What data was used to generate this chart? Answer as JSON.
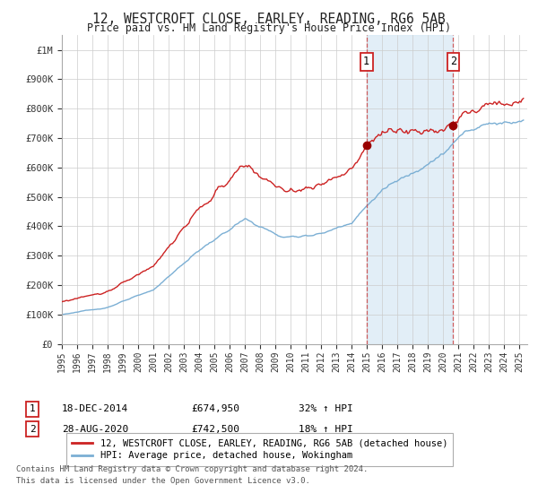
{
  "title": "12, WESTCROFT CLOSE, EARLEY, READING, RG6 5AB",
  "subtitle": "Price paid vs. HM Land Registry's House Price Index (HPI)",
  "legend_line1": "12, WESTCROFT CLOSE, EARLEY, READING, RG6 5AB (detached house)",
  "legend_line2": "HPI: Average price, detached house, Wokingham",
  "annotation1_date": "18-DEC-2014",
  "annotation1_price": "£674,950",
  "annotation1_hpi": "32% ↑ HPI",
  "annotation1_year": 2014.96,
  "annotation1_value": 674950,
  "annotation2_date": "28-AUG-2020",
  "annotation2_price": "£742,500",
  "annotation2_hpi": "18% ↑ HPI",
  "annotation2_year": 2020.65,
  "annotation2_value": 742500,
  "footer1": "Contains HM Land Registry data © Crown copyright and database right 2024.",
  "footer2": "This data is licensed under the Open Government Licence v3.0.",
  "hpi_color": "#7bafd4",
  "hpi_fill_color": "#d6e8f5",
  "price_color": "#cc2222",
  "marker_color": "#990000",
  "vline_color": "#cc4444",
  "background_color": "#ffffff",
  "grid_color": "#cccccc",
  "ylim": [
    0,
    1050000
  ],
  "xlim_start": 1995,
  "xlim_end": 2025.5
}
